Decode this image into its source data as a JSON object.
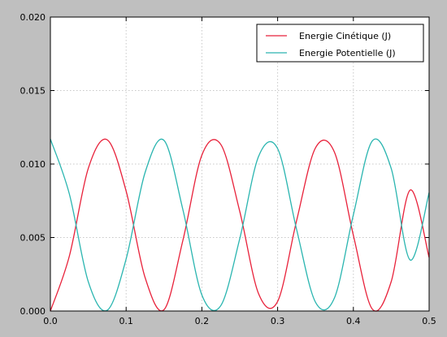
{
  "chart_data": {
    "type": "line",
    "title": "",
    "xlabel": "",
    "ylabel": "",
    "xlim": [
      0.0,
      0.5
    ],
    "ylim": [
      0.0,
      0.02
    ],
    "xticks": [
      0.0,
      0.1,
      0.2,
      0.3,
      0.4,
      0.5
    ],
    "xtick_labels": [
      "0.0",
      "0.1",
      "0.2",
      "0.3",
      "0.4",
      "0.5"
    ],
    "yticks": [
      0.0,
      0.005,
      0.01,
      0.015,
      0.02
    ],
    "ytick_labels": [
      "0.000",
      "0.005",
      "0.010",
      "0.015",
      "0.020"
    ],
    "grid": true,
    "legend_position": "top-right",
    "x": [
      0.0,
      0.025,
      0.05,
      0.075,
      0.1,
      0.125,
      0.15,
      0.175,
      0.2,
      0.225,
      0.25,
      0.275,
      0.3,
      0.325,
      0.35,
      0.375,
      0.4,
      0.425,
      0.45,
      0.475,
      0.5
    ],
    "series": [
      {
        "name": "Energie Cinétique (J)",
        "color": "#e8213a",
        "values": [
          0.0,
          0.00373,
          0.0097,
          0.01165,
          0.00816,
          0.00228,
          9e-05,
          0.00482,
          0.01061,
          0.01133,
          0.00678,
          0.00116,
          0.00065,
          0.00614,
          0.0111,
          0.01081,
          0.00515,
          0.00013,
          0.00201,
          0.00823,
          0.00364
        ]
      },
      {
        "name": "Energie Potentielle (J)",
        "color": "#2ab5b0",
        "values": [
          0.0117,
          0.00797,
          0.002,
          5e-05,
          0.00354,
          0.00942,
          0.01161,
          0.00688,
          0.00109,
          0.00037,
          0.00492,
          0.01054,
          0.01105,
          0.00556,
          0.0006,
          0.00089,
          0.00655,
          0.01157,
          0.00969,
          0.00347,
          0.00806
        ]
      }
    ]
  }
}
